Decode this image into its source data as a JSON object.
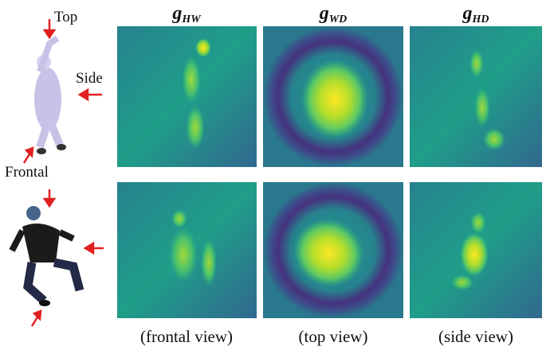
{
  "view_labels": {
    "top": "Top",
    "side": "Side",
    "frontal": "Frontal"
  },
  "columns": [
    {
      "symbol": "g",
      "subscript": "HW",
      "caption": "(frontal view)"
    },
    {
      "symbol": "g",
      "subscript": "WD",
      "caption": "(top view)"
    },
    {
      "symbol": "g",
      "subscript": "HD",
      "caption": "(side view)"
    }
  ]
}
